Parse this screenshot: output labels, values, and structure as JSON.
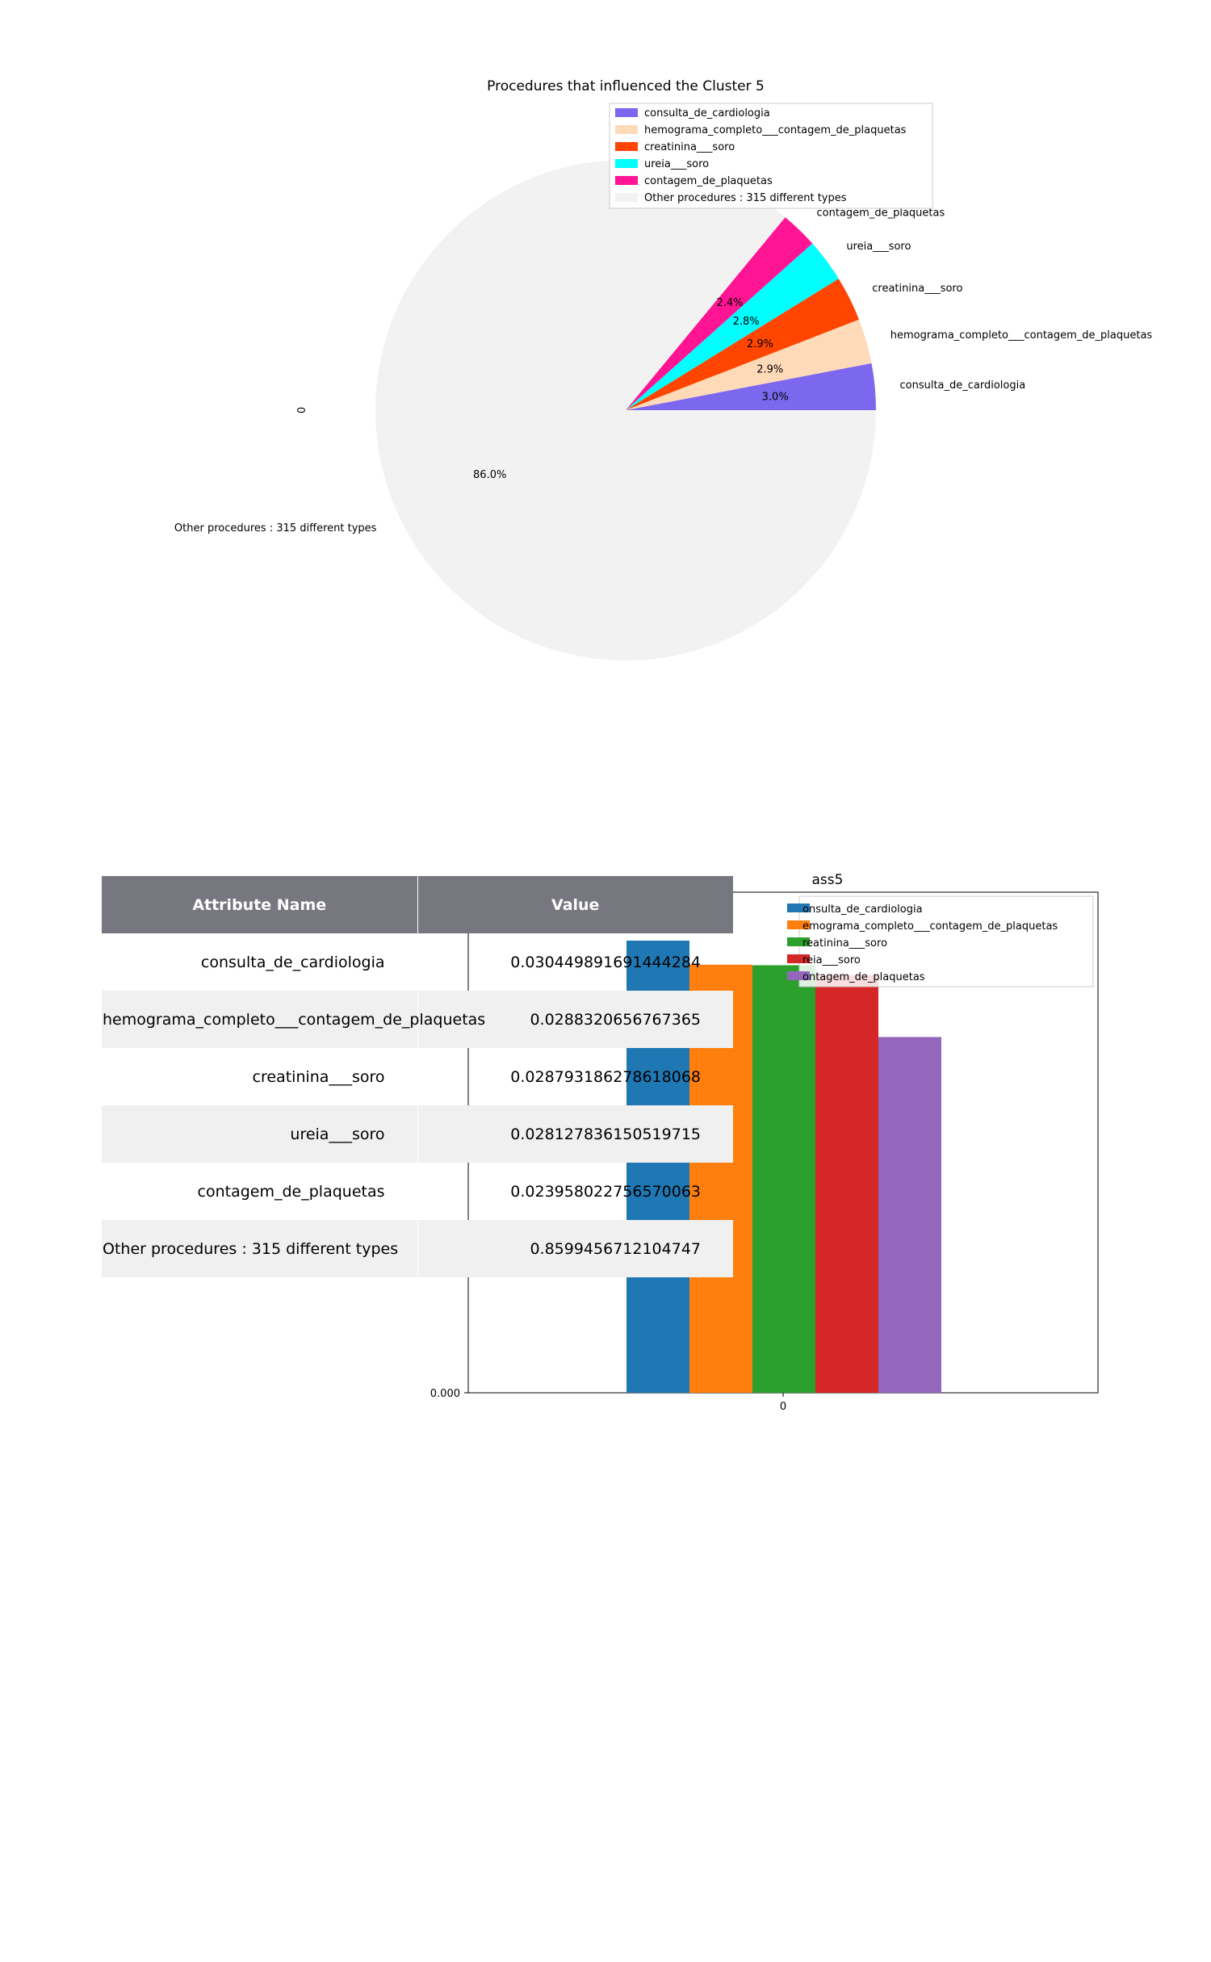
{
  "chart_data": [
    {
      "type": "pie",
      "title": "Procedures that influenced the Cluster 5",
      "ylabel": "0",
      "categories": [
        "consulta_de_cardiologia",
        "hemograma_completo___contagem_de_plaquetas",
        "creatinina___soro",
        "ureia___soro",
        "contagem_de_plaquetas",
        "Other procedures : 315 different types"
      ],
      "values": [
        3.0,
        2.9,
        2.9,
        2.8,
        2.4,
        86.0
      ],
      "pct_labels": [
        "3.0%",
        "2.9%",
        "2.9%",
        "2.8%",
        "2.4%",
        "86.0%"
      ],
      "colors": [
        "#7b68ee",
        "#ffdab9",
        "#ff4500",
        "#00ffff",
        "#ff1493",
        "#f2f2f2"
      ],
      "legend": {
        "location": "top-right"
      }
    },
    {
      "type": "bar",
      "title_visible_fragment": "ass5",
      "x": [
        "0"
      ],
      "ytick": "0.000",
      "series": [
        {
          "name": "consulta_de_cardiologia",
          "value": 0.030449891691444284
        },
        {
          "name": "hemograma_completo___contagem_de_plaquetas",
          "value": 0.0288320656767365
        },
        {
          "name": "creatinina___soro",
          "value": 0.028793186278618068
        },
        {
          "name": "ureia___soro",
          "value": 0.028127836150519715
        },
        {
          "name": "contagem_de_plaquetas",
          "value": 0.023958022756570063
        }
      ],
      "colors": [
        "#1f77b4",
        "#ff7f0e",
        "#2ca02c",
        "#d62728",
        "#9467bd"
      ],
      "legend_fragments": [
        "onsulta_de_cardiologia",
        "emograma_completo___contagem_de_plaquetas",
        "reatinina___soro",
        "reia___soro",
        "ontagem_de_plaquetas"
      ],
      "legend": {
        "location": "top-right"
      }
    },
    {
      "type": "table",
      "columns": [
        "Attribute Name",
        "Value"
      ],
      "rows": [
        [
          "consulta_de_cardiologia",
          "0.030449891691444284"
        ],
        [
          "hemograma_completo___contagem_de_plaquetas",
          "0.0288320656767365"
        ],
        [
          "creatinina___soro",
          "0.028793186278618068"
        ],
        [
          "ureia___soro",
          "0.028127836150519715"
        ],
        [
          "contagem_de_plaquetas",
          "0.023958022756570063"
        ],
        [
          "Other procedures : 315 different types",
          "0.8599456712104747"
        ]
      ]
    }
  ]
}
